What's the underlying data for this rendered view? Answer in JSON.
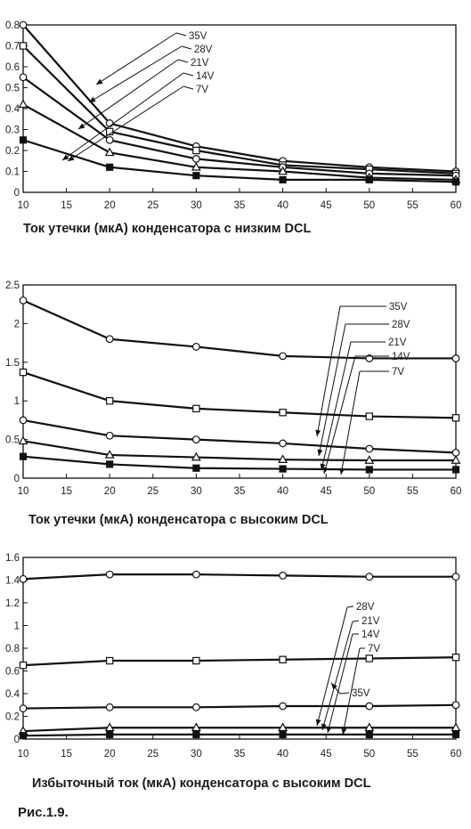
{
  "figure_label": "Рис.1.9.",
  "chart_data": [
    {
      "type": "line",
      "title": "Ток утечки (мкА) конденсатора с низким DCL",
      "x": [
        10,
        20,
        30,
        40,
        50,
        60
      ],
      "xlim": [
        10,
        60
      ],
      "ylim": [
        0,
        0.8
      ],
      "xticks": [
        "10",
        "15",
        "20",
        "25",
        "30",
        "35",
        "40",
        "45",
        "50",
        "55",
        "60"
      ],
      "yticks": [
        "0",
        "0.1",
        "0.2",
        "0.3",
        "0.4",
        "0.5",
        "0.6",
        "0.7",
        "0.8"
      ],
      "series": [
        {
          "name": "35V",
          "marker": "circle",
          "values": [
            0.8,
            0.33,
            0.22,
            0.15,
            0.12,
            0.1
          ]
        },
        {
          "name": "28V",
          "marker": "square",
          "values": [
            0.7,
            0.29,
            0.2,
            0.13,
            0.11,
            0.09
          ]
        },
        {
          "name": "21V",
          "marker": "circle",
          "values": [
            0.55,
            0.25,
            0.16,
            0.12,
            0.09,
            0.08
          ]
        },
        {
          "name": "14V",
          "marker": "triangle",
          "values": [
            0.42,
            0.19,
            0.12,
            0.1,
            0.07,
            0.06
          ]
        },
        {
          "name": "7V",
          "marker": "filled-square",
          "values": [
            0.25,
            0.12,
            0.08,
            0.06,
            0.06,
            0.05
          ]
        }
      ]
    },
    {
      "type": "line",
      "title": "Ток утечки (мкА) конденсатора с высоким DCL",
      "x": [
        10,
        20,
        30,
        40,
        50,
        60
      ],
      "xlim": [
        10,
        60
      ],
      "ylim": [
        0,
        2.5
      ],
      "xticks": [
        "10",
        "15",
        "20",
        "25",
        "30",
        "35",
        "40",
        "45",
        "50",
        "55",
        "60"
      ],
      "yticks": [
        "0",
        "0.5",
        "1",
        "1.5",
        "2",
        "2.5"
      ],
      "series": [
        {
          "name": "35V",
          "marker": "circle",
          "values": [
            2.3,
            1.8,
            1.7,
            1.58,
            1.55,
            1.55
          ]
        },
        {
          "name": "28V",
          "marker": "square",
          "values": [
            1.37,
            1.0,
            0.9,
            0.85,
            0.8,
            0.78
          ]
        },
        {
          "name": "21V",
          "marker": "circle",
          "values": [
            0.75,
            0.55,
            0.5,
            0.45,
            0.38,
            0.33
          ]
        },
        {
          "name": "14V",
          "marker": "triangle",
          "values": [
            0.48,
            0.3,
            0.27,
            0.24,
            0.23,
            0.23
          ]
        },
        {
          "name": "7V",
          "marker": "filled-square",
          "values": [
            0.28,
            0.18,
            0.13,
            0.12,
            0.11,
            0.11
          ]
        }
      ]
    },
    {
      "type": "line",
      "title": "Избыточный ток (мкА) конденсатора с высоким DCL",
      "x": [
        10,
        20,
        30,
        40,
        50,
        60
      ],
      "xlim": [
        10,
        60
      ],
      "ylim": [
        0,
        1.6
      ],
      "xticks": [
        "10",
        "15",
        "20",
        "25",
        "30",
        "35",
        "40",
        "45",
        "50",
        "55",
        "60"
      ],
      "yticks": [
        "0",
        "0.2",
        "0.4",
        "0.6",
        "0.8",
        "1",
        "1.2",
        "1.4",
        "1.6"
      ],
      "series": [
        {
          "name": "35V",
          "marker": "circle",
          "values": [
            1.41,
            1.45,
            1.45,
            1.44,
            1.43,
            1.43
          ]
        },
        {
          "name": "28V",
          "marker": "square",
          "values": [
            0.65,
            0.69,
            0.69,
            0.7,
            0.71,
            0.72
          ]
        },
        {
          "name": "21V",
          "marker": "circle",
          "values": [
            0.27,
            0.28,
            0.28,
            0.29,
            0.29,
            0.3
          ]
        },
        {
          "name": "14V",
          "marker": "triangle",
          "values": [
            0.07,
            0.1,
            0.1,
            0.1,
            0.1,
            0.1
          ]
        },
        {
          "name": "7V",
          "marker": "filled-square",
          "values": [
            0.03,
            0.04,
            0.04,
            0.04,
            0.04,
            0.04
          ]
        }
      ]
    }
  ]
}
